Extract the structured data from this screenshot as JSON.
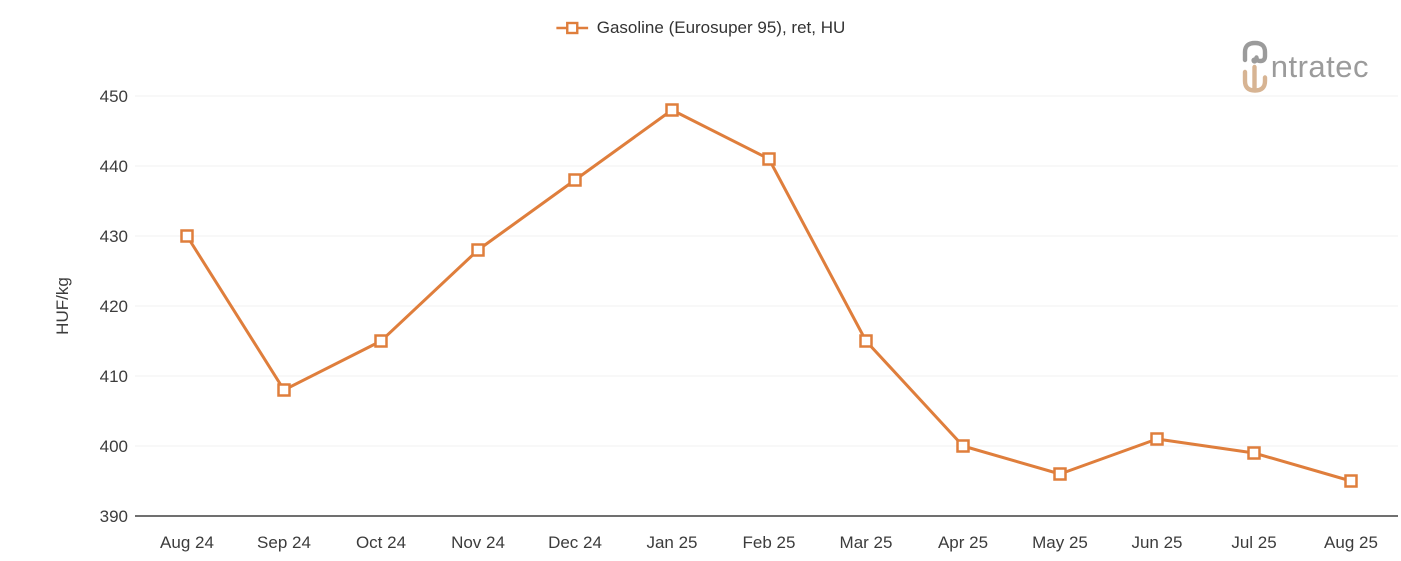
{
  "legend": {
    "series_label": "Gasoline (Eurosuper 95), ret, HU"
  },
  "logo": {
    "brand": "intratec",
    "text_rest": "ntratec"
  },
  "colors": {
    "series": "#DF7E3C",
    "marker_fill": "#FFFFFF",
    "grid": "#F1F1F1",
    "axis_line": "#404040",
    "tick_text": "#3C3C3C",
    "legend_text": "#333333",
    "logo_gray": "#9B9B9B",
    "logo_tan": "#D7B493"
  },
  "chart_data": {
    "type": "line",
    "title": "",
    "categories": [
      "Aug 24",
      "Sep 24",
      "Oct 24",
      "Nov 24",
      "Dec 24",
      "Jan 25",
      "Feb 25",
      "Mar 25",
      "Apr 25",
      "May 25",
      "Jun 25",
      "Jul 25",
      "Aug 25"
    ],
    "series": [
      {
        "name": "Gasoline (Eurosuper 95), ret, HU",
        "values": [
          430,
          408,
          415,
          428,
          438,
          448,
          441,
          415,
          400,
          396,
          401,
          399,
          395
        ]
      }
    ],
    "xlabel": "",
    "ylabel": "HUF/kg",
    "ylim": [
      390,
      450
    ],
    "yticks": [
      390,
      400,
      410,
      420,
      430,
      440,
      450
    ],
    "grid": "horizontal",
    "legend_position": "top-center",
    "marker": "open-square"
  }
}
